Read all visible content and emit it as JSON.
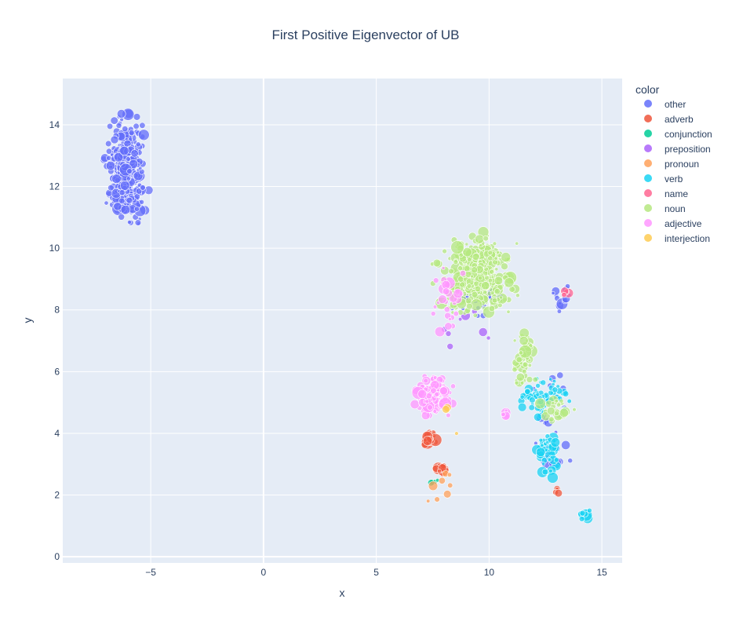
{
  "chart_data": {
    "type": "scatter",
    "title": "First Positive Eigenvector of UB",
    "xlabel": "x",
    "ylabel": "y",
    "xlim": [
      -8.9,
      15.9
    ],
    "ylim": [
      -0.2,
      15.5
    ],
    "x_ticks": [
      -5,
      0,
      5,
      10,
      15
    ],
    "y_ticks": [
      0,
      2,
      4,
      6,
      8,
      10,
      12,
      14
    ],
    "x_tick_labels": [
      "−5",
      "0",
      "5",
      "10",
      "15"
    ],
    "y_tick_labels": [
      "0",
      "2",
      "4",
      "6",
      "8",
      "10",
      "12",
      "14"
    ],
    "grid": true,
    "legend_position": "right",
    "legend_title": "color",
    "colors": {
      "plot_bg": "#e5ecf6",
      "grid": "#ffffff",
      "text": "#2a3f5f"
    },
    "series": [
      {
        "name": "other",
        "color": "#636efa",
        "clusters": [
          {
            "x": [
              -7.2,
              -5.0
            ],
            "y": [
              10.2,
              14.8
            ],
            "n": 360
          },
          {
            "x": [
              7.8,
              11.0
            ],
            "y": [
              7.6,
              9.2
            ],
            "n": 40
          },
          {
            "x": [
              11.5,
              14.0
            ],
            "y": [
              2.2,
              6.6
            ],
            "n": 30
          },
          {
            "x": [
              12.6,
              13.8
            ],
            "y": [
              7.9,
              8.9
            ],
            "n": 14
          }
        ]
      },
      {
        "name": "adverb",
        "color": "#ef553b",
        "clusters": [
          {
            "x": [
              7.0,
              7.8
            ],
            "y": [
              3.3,
              4.3
            ],
            "n": 22
          },
          {
            "x": [
              7.3,
              8.6
            ],
            "y": [
              2.6,
              3.1
            ],
            "n": 10
          },
          {
            "x": [
              12.9,
              13.2
            ],
            "y": [
              2.0,
              2.3
            ],
            "n": 4
          }
        ]
      },
      {
        "name": "conjunction",
        "color": "#00cc96",
        "clusters": [
          {
            "x": [
              7.3,
              7.8
            ],
            "y": [
              2.3,
              2.6
            ],
            "n": 4
          }
        ]
      },
      {
        "name": "preposition",
        "color": "#ab63fa",
        "clusters": [
          {
            "x": [
              7.8,
              10.2
            ],
            "y": [
              6.1,
              8.8
            ],
            "n": 8
          }
        ]
      },
      {
        "name": "pronoun",
        "color": "#ffa15a",
        "clusters": [
          {
            "x": [
              7.1,
              8.6
            ],
            "y": [
              1.3,
              3.0
            ],
            "n": 8
          }
        ]
      },
      {
        "name": "verb",
        "color": "#19d3f3",
        "clusters": [
          {
            "x": [
              11.0,
              13.8
            ],
            "y": [
              4.4,
              6.0
            ],
            "n": 60
          },
          {
            "x": [
              11.9,
              13.4
            ],
            "y": [
              2.2,
              4.4
            ],
            "n": 45
          },
          {
            "x": [
              13.8,
              14.6
            ],
            "y": [
              0.8,
              1.8
            ],
            "n": 10
          }
        ]
      },
      {
        "name": "name",
        "color": "#ff6692",
        "clusters": [
          {
            "x": [
              13.2,
              13.6
            ],
            "y": [
              8.4,
              8.8
            ],
            "n": 5
          }
        ]
      },
      {
        "name": "noun",
        "color": "#b6e880",
        "clusters": [
          {
            "x": [
              7.3,
              11.6
            ],
            "y": [
              7.5,
              10.7
            ],
            "n": 420
          },
          {
            "x": [
              10.8,
              12.2
            ],
            "y": [
              5.2,
              7.8
            ],
            "n": 45
          },
          {
            "x": [
              12.0,
              14.0
            ],
            "y": [
              4.2,
              5.4
            ],
            "n": 25
          }
        ]
      },
      {
        "name": "adjective",
        "color": "#ff97ff",
        "clusters": [
          {
            "x": [
              6.4,
              8.6
            ],
            "y": [
              4.3,
              6.2
            ],
            "n": 130
          },
          {
            "x": [
              7.0,
              9.5
            ],
            "y": [
              6.9,
              10.1
            ],
            "n": 30
          },
          {
            "x": [
              10.4,
              11.0
            ],
            "y": [
              4.5,
              4.9
            ],
            "n": 5
          }
        ]
      },
      {
        "name": "interjection",
        "color": "#fecb52",
        "clusters": [
          {
            "x": [
              8.5,
              8.8
            ],
            "y": [
              3.9,
              4.2
            ],
            "n": 1
          },
          {
            "x": [
              7.9,
              8.3
            ],
            "y": [
              4.6,
              4.9
            ],
            "n": 2
          }
        ]
      }
    ]
  }
}
